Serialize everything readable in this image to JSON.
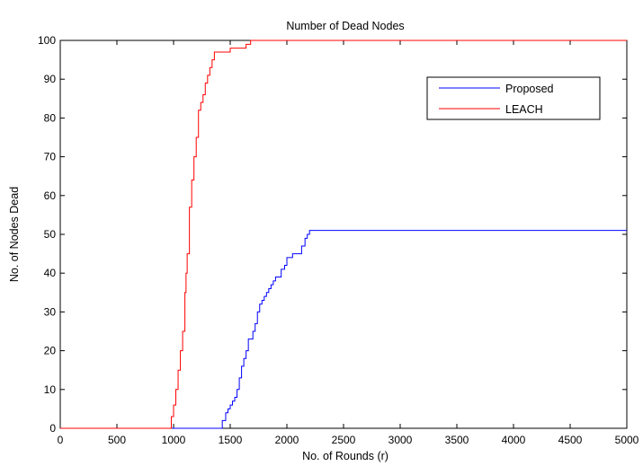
{
  "chart_data": {
    "type": "line",
    "title": "Number of Dead Nodes",
    "xlabel": "No. of Rounds (r)",
    "ylabel": "No. of  Nodes Dead",
    "xlim": [
      0,
      5000
    ],
    "ylim": [
      0,
      100
    ],
    "xticks": [
      "0",
      "500",
      "1000",
      "1500",
      "2000",
      "2500",
      "3000",
      "3500",
      "4000",
      "4500",
      "5000"
    ],
    "yticks": [
      "0",
      "10",
      "20",
      "30",
      "40",
      "50",
      "60",
      "70",
      "80",
      "90",
      "100"
    ],
    "grid": false,
    "legend_position": "top-right",
    "series": [
      {
        "name": "Proposed",
        "color": "#0000ff",
        "x": [
          0,
          1400,
          1430,
          1460,
          1480,
          1500,
          1520,
          1540,
          1560,
          1580,
          1600,
          1620,
          1640,
          1660,
          1680,
          1700,
          1720,
          1740,
          1760,
          1780,
          1800,
          1820,
          1840,
          1860,
          1880,
          1900,
          1920,
          1950,
          1980,
          2000,
          2050,
          2100,
          2130,
          2160,
          2180,
          2200,
          5000
        ],
        "values": [
          0,
          0,
          2,
          4,
          5,
          6,
          7,
          8,
          10,
          13,
          16,
          18,
          20,
          23,
          23,
          25,
          27,
          30,
          32,
          33,
          34,
          35,
          36,
          37,
          38,
          39,
          39,
          41,
          42,
          44,
          45,
          45,
          47,
          49,
          50,
          51,
          51
        ]
      },
      {
        "name": "LEACH",
        "color": "#ff0000",
        "x": [
          0,
          960,
          980,
          1000,
          1020,
          1040,
          1060,
          1080,
          1100,
          1110,
          1120,
          1140,
          1160,
          1180,
          1200,
          1220,
          1240,
          1260,
          1280,
          1300,
          1320,
          1340,
          1360,
          1400,
          1440,
          1500,
          1560,
          1600,
          1640,
          1680,
          5000
        ],
        "values": [
          0,
          0,
          3,
          6,
          10,
          15,
          20,
          25,
          35,
          40,
          45,
          57,
          64,
          70,
          75,
          82,
          84,
          86,
          89,
          91,
          93,
          95,
          97,
          97,
          97,
          98,
          98,
          98,
          99,
          100,
          100
        ]
      }
    ]
  }
}
